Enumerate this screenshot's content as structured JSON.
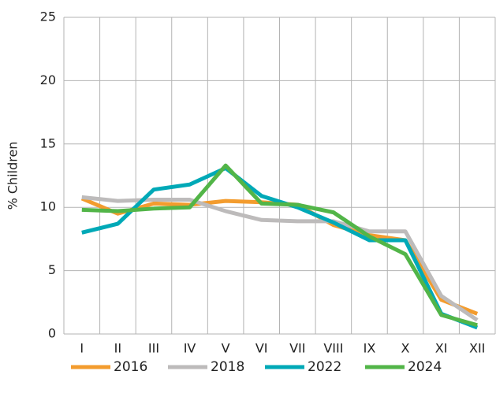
{
  "chart_data": {
    "type": "line",
    "y_label": "% Children",
    "categories": [
      "I",
      "II",
      "III",
      "IV",
      "V",
      "VI",
      "VII",
      "VIII",
      "IX",
      "X",
      "XI",
      "XII"
    ],
    "series": [
      {
        "name": "2016",
        "color": "#f39c2e",
        "values": [
          10.7,
          9.5,
          10.3,
          10.2,
          10.5,
          10.4,
          10.2,
          8.6,
          7.8,
          7.4,
          2.7,
          1.6
        ]
      },
      {
        "name": "2018",
        "color": "#bdbbbb",
        "values": [
          10.8,
          10.5,
          10.6,
          10.6,
          9.7,
          9.0,
          8.9,
          8.9,
          8.1,
          8.1,
          3.0,
          1.1
        ]
      },
      {
        "name": "2022",
        "color": "#00a9b7",
        "values": [
          8.0,
          8.7,
          11.4,
          11.8,
          13.1,
          10.9,
          10.0,
          8.8,
          7.4,
          7.4,
          1.6,
          0.5
        ]
      },
      {
        "name": "2024",
        "color": "#52b548",
        "values": [
          9.8,
          9.7,
          9.9,
          10.0,
          13.3,
          10.3,
          10.2,
          9.6,
          7.7,
          6.3,
          1.5,
          0.7
        ]
      }
    ],
    "ylim": [
      0,
      25
    ],
    "yticks": [
      0,
      5,
      10,
      15,
      20,
      25
    ],
    "grid": true,
    "legend": "bottom"
  }
}
